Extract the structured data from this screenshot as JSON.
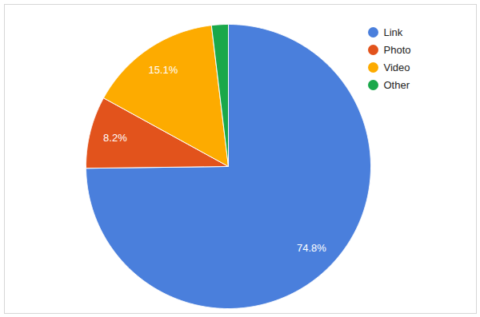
{
  "chart_data": {
    "type": "pie",
    "categories": [
      "Link",
      "Photo",
      "Video",
      "Other"
    ],
    "values": [
      74.8,
      8.2,
      15.1,
      1.9
    ],
    "value_labels": [
      "74.8%",
      "8.2%",
      "15.1%",
      null
    ],
    "colors": [
      "#4a7fdc",
      "#e2531c",
      "#fdab00",
      "#1aa84a"
    ],
    "data_labels": true,
    "legend": "top-right"
  }
}
